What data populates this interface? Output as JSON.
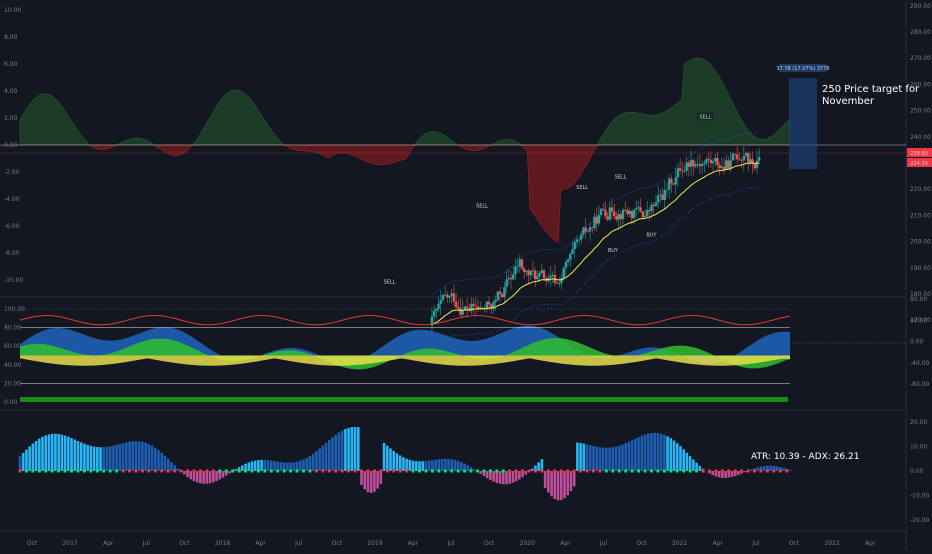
{
  "chart_data": [
    {
      "type": "candlestick",
      "panel": "price",
      "left_axis": {
        "ticks": [
          "10.00",
          "8.00",
          "6.00",
          "4.00",
          "2.00",
          "0.00",
          "-2.00",
          "-4.00",
          "-6.00",
          "-8.00",
          "-10.00"
        ],
        "values": [
          10,
          8,
          6,
          4,
          2,
          0,
          -2,
          -4,
          -6,
          -8,
          -10
        ]
      },
      "right_axis": {
        "ticks": [
          "290.00",
          "280.00",
          "270.00",
          "260.00",
          "250.00",
          "240.00",
          "230.00",
          "220.00",
          "210.00",
          "200.00",
          "190.00",
          "180.00",
          "170.00"
        ],
        "values": [
          290,
          280,
          270,
          260,
          250,
          240,
          230,
          220,
          210,
          200,
          190,
          180,
          170
        ]
      },
      "price_tags": [
        "228.90",
        "224.33"
      ],
      "signals": [
        {
          "text": "SELL",
          "t": 0.48,
          "price": 184
        },
        {
          "text": "SELL",
          "t": 0.6,
          "price": 213
        },
        {
          "text": "SELL",
          "t": 0.73,
          "price": 220
        },
        {
          "text": "SELL",
          "t": 0.78,
          "price": 224
        },
        {
          "text": "SELL",
          "t": 0.89,
          "price": 247
        },
        {
          "text": "BUY",
          "t": 0.77,
          "price": 196
        },
        {
          "text": "BUY",
          "t": 0.82,
          "price": 202
        }
      ],
      "measure_label": "37.78 (17.07%) 3778",
      "annotation": "250 Price target for November",
      "grid": false
    },
    {
      "type": "area",
      "panel": "oscillator",
      "left_axis": {
        "ticks": [
          "100.00",
          "80.00",
          "60.00",
          "40.00",
          "20.00",
          "0.00"
        ],
        "values": [
          100,
          80,
          60,
          40,
          20,
          0
        ]
      },
      "right_axis": {
        "ticks": [
          "80.00",
          "40.00",
          "0.00",
          "-40.00",
          "-80.00"
        ],
        "values": [
          80,
          40,
          0,
          -40,
          -80
        ]
      }
    },
    {
      "type": "bar",
      "panel": "adx",
      "right_axis": {
        "ticks": [
          "20.00",
          "10.00",
          "0.00",
          "-10.00",
          "-20.00"
        ],
        "values": [
          20,
          10,
          0,
          -10,
          -20
        ]
      },
      "readout": "ATR: 10.39 - ADX: 26.21"
    }
  ],
  "time_axis": [
    "Oct",
    "2017",
    "Apr",
    "Jul",
    "Oct",
    "2018",
    "Apr",
    "Jul",
    "Oct",
    "2019",
    "Apr",
    "Jul",
    "Oct",
    "2020",
    "Apr",
    "Jul",
    "Oct",
    "2021",
    "Apr",
    "Jul",
    "Oct",
    "2022",
    "Apr"
  ]
}
